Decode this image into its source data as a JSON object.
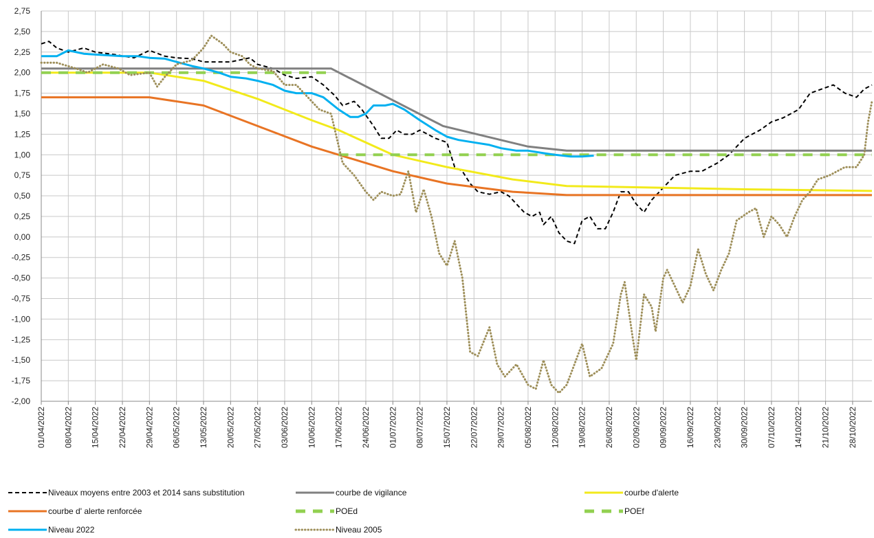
{
  "chart_data": {
    "type": "line",
    "title": "",
    "xlabel": "",
    "ylabel": "",
    "ylim": [
      -2.0,
      2.75
    ],
    "y_step": 0.25,
    "x_range": [
      "2022-04-01",
      "2022-11-02"
    ],
    "x_tick_labels": [
      "01/04/2022",
      "08/04/2022",
      "15/04/2022",
      "22/04/2022",
      "29/04/2022",
      "06/05/2022",
      "13/05/2022",
      "20/05/2022",
      "27/05/2022",
      "03/06/2022",
      "10/06/2022",
      "17/06/2022",
      "24/06/2022",
      "01/07/2022",
      "08/07/2022",
      "15/07/2022",
      "22/07/2022",
      "29/07/2022",
      "05/08/2022",
      "12/08/2022",
      "19/08/2022",
      "26/08/2022",
      "02/09/2022",
      "09/09/2022",
      "16/09/2022",
      "23/09/2022",
      "30/09/2022",
      "07/10/2022",
      "14/10/2022",
      "21/10/2022",
      "28/10/2022"
    ],
    "y_tick_labels": [
      "-2,00",
      "-1,75",
      "-1,50",
      "-1,25",
      "-1,00",
      "-0,75",
      "-0,50",
      "-0,25",
      "0,00",
      "0,25",
      "0,50",
      "0,75",
      "1,00",
      "1,25",
      "1,50",
      "1,75",
      "2,00",
      "2,25",
      "2,50",
      "2,75"
    ],
    "grid": true,
    "legend_position": "bottom",
    "series": [
      {
        "name": "Niveaux moyens entre 2003 et 2014 sans substitution",
        "color": "#000000",
        "style": "dashed",
        "points": [
          [
            "2022-04-01",
            2.35
          ],
          [
            "2022-04-03",
            2.38
          ],
          [
            "2022-04-05",
            2.3
          ],
          [
            "2022-04-08",
            2.25
          ],
          [
            "2022-04-12",
            2.3
          ],
          [
            "2022-04-15",
            2.25
          ],
          [
            "2022-04-20",
            2.22
          ],
          [
            "2022-04-25",
            2.18
          ],
          [
            "2022-04-29",
            2.27
          ],
          [
            "2022-05-03",
            2.2
          ],
          [
            "2022-05-06",
            2.18
          ],
          [
            "2022-05-10",
            2.17
          ],
          [
            "2022-05-13",
            2.13
          ],
          [
            "2022-05-20",
            2.13
          ],
          [
            "2022-05-25",
            2.18
          ],
          [
            "2022-05-27",
            2.1
          ],
          [
            "2022-05-31",
            2.05
          ],
          [
            "2022-06-03",
            1.97
          ],
          [
            "2022-06-06",
            1.93
          ],
          [
            "2022-06-10",
            1.95
          ],
          [
            "2022-06-13",
            1.85
          ],
          [
            "2022-06-16",
            1.72
          ],
          [
            "2022-06-18",
            1.6
          ],
          [
            "2022-06-21",
            1.65
          ],
          [
            "2022-06-23",
            1.55
          ],
          [
            "2022-06-26",
            1.35
          ],
          [
            "2022-06-28",
            1.2
          ],
          [
            "2022-06-30",
            1.2
          ],
          [
            "2022-07-02",
            1.3
          ],
          [
            "2022-07-04",
            1.25
          ],
          [
            "2022-07-06",
            1.25
          ],
          [
            "2022-07-08",
            1.3
          ],
          [
            "2022-07-10",
            1.25
          ],
          [
            "2022-07-12",
            1.2
          ],
          [
            "2022-07-15",
            1.15
          ],
          [
            "2022-07-17",
            0.85
          ],
          [
            "2022-07-19",
            0.8
          ],
          [
            "2022-07-21",
            0.65
          ],
          [
            "2022-07-23",
            0.55
          ],
          [
            "2022-07-26",
            0.52
          ],
          [
            "2022-07-29",
            0.55
          ],
          [
            "2022-07-31",
            0.5
          ],
          [
            "2022-08-02",
            0.4
          ],
          [
            "2022-08-04",
            0.3
          ],
          [
            "2022-08-06",
            0.25
          ],
          [
            "2022-08-08",
            0.3
          ],
          [
            "2022-08-09",
            0.15
          ],
          [
            "2022-08-11",
            0.25
          ],
          [
            "2022-08-13",
            0.05
          ],
          [
            "2022-08-15",
            -0.05
          ],
          [
            "2022-08-17",
            -0.08
          ],
          [
            "2022-08-19",
            0.2
          ],
          [
            "2022-08-21",
            0.25
          ],
          [
            "2022-08-23",
            0.1
          ],
          [
            "2022-08-25",
            0.1
          ],
          [
            "2022-08-27",
            0.3
          ],
          [
            "2022-08-29",
            0.55
          ],
          [
            "2022-08-31",
            0.55
          ],
          [
            "2022-09-02",
            0.4
          ],
          [
            "2022-09-04",
            0.3
          ],
          [
            "2022-09-06",
            0.45
          ],
          [
            "2022-09-09",
            0.6
          ],
          [
            "2022-09-12",
            0.75
          ],
          [
            "2022-09-16",
            0.8
          ],
          [
            "2022-09-19",
            0.8
          ],
          [
            "2022-09-23",
            0.9
          ],
          [
            "2022-09-26",
            1.0
          ],
          [
            "2022-09-30",
            1.2
          ],
          [
            "2022-10-04",
            1.3
          ],
          [
            "2022-10-07",
            1.4
          ],
          [
            "2022-10-10",
            1.45
          ],
          [
            "2022-10-14",
            1.55
          ],
          [
            "2022-10-17",
            1.75
          ],
          [
            "2022-10-20",
            1.8
          ],
          [
            "2022-10-23",
            1.85
          ],
          [
            "2022-10-26",
            1.75
          ],
          [
            "2022-10-29",
            1.7
          ],
          [
            "2022-10-31",
            1.8
          ],
          [
            "2022-11-02",
            1.85
          ]
        ]
      },
      {
        "name": "courbe de vigilance",
        "color": "#808080",
        "style": "solid",
        "points": [
          [
            "2022-04-01",
            2.05
          ],
          [
            "2022-06-15",
            2.05
          ],
          [
            "2022-07-14",
            1.35
          ],
          [
            "2022-08-05",
            1.1
          ],
          [
            "2022-08-15",
            1.05
          ],
          [
            "2022-11-02",
            1.05
          ]
        ]
      },
      {
        "name": "courbe d'alerte",
        "color": "#f2ea1b",
        "style": "solid",
        "points": [
          [
            "2022-04-01",
            2.0
          ],
          [
            "2022-04-29",
            2.0
          ],
          [
            "2022-05-13",
            1.9
          ],
          [
            "2022-05-27",
            1.68
          ],
          [
            "2022-06-10",
            1.42
          ],
          [
            "2022-06-17",
            1.3
          ],
          [
            "2022-07-01",
            1.0
          ],
          [
            "2022-07-15",
            0.85
          ],
          [
            "2022-08-01",
            0.7
          ],
          [
            "2022-08-15",
            0.62
          ],
          [
            "2022-09-30",
            0.58
          ],
          [
            "2022-11-02",
            0.56
          ]
        ]
      },
      {
        "name": "courbe d' alerte renforcée",
        "color": "#e87424",
        "style": "solid",
        "points": [
          [
            "2022-04-01",
            1.7
          ],
          [
            "2022-04-29",
            1.7
          ],
          [
            "2022-05-13",
            1.6
          ],
          [
            "2022-05-27",
            1.35
          ],
          [
            "2022-06-10",
            1.1
          ],
          [
            "2022-06-17",
            1.0
          ],
          [
            "2022-07-01",
            0.8
          ],
          [
            "2022-07-15",
            0.65
          ],
          [
            "2022-08-01",
            0.55
          ],
          [
            "2022-08-15",
            0.51
          ],
          [
            "2022-11-02",
            0.51
          ]
        ]
      },
      {
        "name": "POEd",
        "color": "#92d050",
        "style": "longdash",
        "points": [
          [
            "2022-04-01",
            2.0
          ],
          [
            "2022-06-14",
            2.0
          ]
        ]
      },
      {
        "name": "POEf",
        "color": "#92d050",
        "style": "longdash",
        "points": [
          [
            "2022-06-17",
            1.0
          ],
          [
            "2022-11-02",
            1.0
          ]
        ]
      },
      {
        "name": "Niveau 2022",
        "color": "#00b0f0",
        "style": "solid",
        "points": [
          [
            "2022-04-01",
            2.2
          ],
          [
            "2022-04-05",
            2.2
          ],
          [
            "2022-04-08",
            2.27
          ],
          [
            "2022-04-12",
            2.23
          ],
          [
            "2022-04-15",
            2.22
          ],
          [
            "2022-04-22",
            2.2
          ],
          [
            "2022-04-26",
            2.2
          ],
          [
            "2022-04-29",
            2.18
          ],
          [
            "2022-05-03",
            2.17
          ],
          [
            "2022-05-06",
            2.13
          ],
          [
            "2022-05-10",
            2.08
          ],
          [
            "2022-05-13",
            2.05
          ],
          [
            "2022-05-17",
            2.0
          ],
          [
            "2022-05-20",
            1.95
          ],
          [
            "2022-05-24",
            1.93
          ],
          [
            "2022-05-27",
            1.9
          ],
          [
            "2022-05-31",
            1.85
          ],
          [
            "2022-06-03",
            1.78
          ],
          [
            "2022-06-06",
            1.75
          ],
          [
            "2022-06-10",
            1.75
          ],
          [
            "2022-06-13",
            1.7
          ],
          [
            "2022-06-17",
            1.55
          ],
          [
            "2022-06-20",
            1.46
          ],
          [
            "2022-06-22",
            1.46
          ],
          [
            "2022-06-24",
            1.5
          ],
          [
            "2022-06-26",
            1.6
          ],
          [
            "2022-06-29",
            1.6
          ],
          [
            "2022-07-01",
            1.62
          ],
          [
            "2022-07-04",
            1.55
          ],
          [
            "2022-07-08",
            1.42
          ],
          [
            "2022-07-12",
            1.3
          ],
          [
            "2022-07-15",
            1.22
          ],
          [
            "2022-07-18",
            1.18
          ],
          [
            "2022-07-22",
            1.15
          ],
          [
            "2022-07-26",
            1.12
          ],
          [
            "2022-07-29",
            1.08
          ],
          [
            "2022-08-02",
            1.05
          ],
          [
            "2022-08-05",
            1.05
          ],
          [
            "2022-08-09",
            1.02
          ],
          [
            "2022-08-12",
            1.0
          ],
          [
            "2022-08-16",
            0.98
          ],
          [
            "2022-08-19",
            0.98
          ],
          [
            "2022-08-22",
            0.99
          ]
        ]
      },
      {
        "name": "Niveau 2005",
        "color": "#9e8f5a",
        "style": "dotted",
        "points": [
          [
            "2022-04-01",
            2.12
          ],
          [
            "2022-04-05",
            2.12
          ],
          [
            "2022-04-10",
            2.05
          ],
          [
            "2022-04-13",
            2.0
          ],
          [
            "2022-04-17",
            2.1
          ],
          [
            "2022-04-21",
            2.05
          ],
          [
            "2022-04-24",
            1.97
          ],
          [
            "2022-04-29",
            2.0
          ],
          [
            "2022-05-01",
            1.83
          ],
          [
            "2022-05-03",
            1.95
          ],
          [
            "2022-05-06",
            2.1
          ],
          [
            "2022-05-10",
            2.15
          ],
          [
            "2022-05-13",
            2.3
          ],
          [
            "2022-05-15",
            2.45
          ],
          [
            "2022-05-18",
            2.35
          ],
          [
            "2022-05-20",
            2.25
          ],
          [
            "2022-05-23",
            2.2
          ],
          [
            "2022-05-25",
            2.1
          ],
          [
            "2022-05-27",
            2.05
          ],
          [
            "2022-05-31",
            2.02
          ],
          [
            "2022-06-03",
            1.85
          ],
          [
            "2022-06-06",
            1.85
          ],
          [
            "2022-06-09",
            1.7
          ],
          [
            "2022-06-12",
            1.55
          ],
          [
            "2022-06-15",
            1.5
          ],
          [
            "2022-06-17",
            1.1
          ],
          [
            "2022-06-18",
            0.9
          ],
          [
            "2022-06-21",
            0.75
          ],
          [
            "2022-06-24",
            0.55
          ],
          [
            "2022-06-26",
            0.45
          ],
          [
            "2022-06-28",
            0.55
          ],
          [
            "2022-07-01",
            0.5
          ],
          [
            "2022-07-03",
            0.52
          ],
          [
            "2022-07-05",
            0.8
          ],
          [
            "2022-07-07",
            0.3
          ],
          [
            "2022-07-09",
            0.58
          ],
          [
            "2022-07-11",
            0.25
          ],
          [
            "2022-07-13",
            -0.2
          ],
          [
            "2022-07-15",
            -0.35
          ],
          [
            "2022-07-17",
            -0.05
          ],
          [
            "2022-07-19",
            -0.5
          ],
          [
            "2022-07-21",
            -1.4
          ],
          [
            "2022-07-23",
            -1.45
          ],
          [
            "2022-07-26",
            -1.1
          ],
          [
            "2022-07-28",
            -1.55
          ],
          [
            "2022-07-30",
            -1.7
          ],
          [
            "2022-08-02",
            -1.55
          ],
          [
            "2022-08-05",
            -1.8
          ],
          [
            "2022-08-07",
            -1.85
          ],
          [
            "2022-08-09",
            -1.5
          ],
          [
            "2022-08-11",
            -1.8
          ],
          [
            "2022-08-13",
            -1.9
          ],
          [
            "2022-08-15",
            -1.8
          ],
          [
            "2022-08-17",
            -1.55
          ],
          [
            "2022-08-19",
            -1.3
          ],
          [
            "2022-08-21",
            -1.7
          ],
          [
            "2022-08-24",
            -1.6
          ],
          [
            "2022-08-27",
            -1.3
          ],
          [
            "2022-08-29",
            -0.7
          ],
          [
            "2022-08-30",
            -0.55
          ],
          [
            "2022-09-01",
            -1.2
          ],
          [
            "2022-09-02",
            -1.5
          ],
          [
            "2022-09-04",
            -0.7
          ],
          [
            "2022-09-06",
            -0.85
          ],
          [
            "2022-09-07",
            -1.15
          ],
          [
            "2022-09-09",
            -0.5
          ],
          [
            "2022-09-10",
            -0.4
          ],
          [
            "2022-09-12",
            -0.6
          ],
          [
            "2022-09-14",
            -0.8
          ],
          [
            "2022-09-16",
            -0.6
          ],
          [
            "2022-09-18",
            -0.15
          ],
          [
            "2022-09-20",
            -0.45
          ],
          [
            "2022-09-22",
            -0.65
          ],
          [
            "2022-09-24",
            -0.4
          ],
          [
            "2022-09-26",
            -0.2
          ],
          [
            "2022-09-28",
            0.2
          ],
          [
            "2022-10-01",
            0.3
          ],
          [
            "2022-10-03",
            0.35
          ],
          [
            "2022-10-05",
            0.0
          ],
          [
            "2022-10-07",
            0.25
          ],
          [
            "2022-10-09",
            0.15
          ],
          [
            "2022-10-11",
            0.0
          ],
          [
            "2022-10-13",
            0.25
          ],
          [
            "2022-10-15",
            0.45
          ],
          [
            "2022-10-17",
            0.55
          ],
          [
            "2022-10-19",
            0.7
          ],
          [
            "2022-10-22",
            0.75
          ],
          [
            "2022-10-26",
            0.85
          ],
          [
            "2022-10-29",
            0.85
          ],
          [
            "2022-10-31",
            1.0
          ],
          [
            "2022-11-01",
            1.4
          ],
          [
            "2022-11-02",
            1.65
          ]
        ]
      }
    ]
  }
}
